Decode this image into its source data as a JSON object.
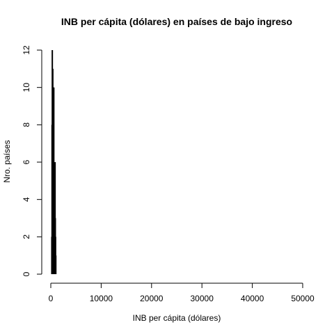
{
  "chart_data": {
    "type": "bar",
    "title": "INB per cápita (dólares) en países de bajo ingreso",
    "xlabel": "INB per cápita (dólares)",
    "ylabel": "Nro. países",
    "xlim": [
      0,
      50000
    ],
    "ylim": [
      0,
      12
    ],
    "x_ticks": [
      "0",
      "10000",
      "20000",
      "30000",
      "40000",
      "50000"
    ],
    "y_ticks": [
      "0",
      "2",
      "4",
      "6",
      "8",
      "10",
      "12"
    ],
    "grid": false,
    "legend": "none",
    "bar_color": "#000000",
    "series": [
      {
        "x": [
          200,
          250,
          300,
          350,
          400,
          450,
          500,
          550,
          600,
          650,
          700,
          750,
          800,
          850,
          900,
          950,
          1000
        ],
        "values": [
          2,
          8,
          12,
          7,
          11,
          6,
          9,
          5,
          10,
          4,
          3,
          3,
          5,
          6,
          3,
          2,
          1
        ]
      }
    ]
  }
}
